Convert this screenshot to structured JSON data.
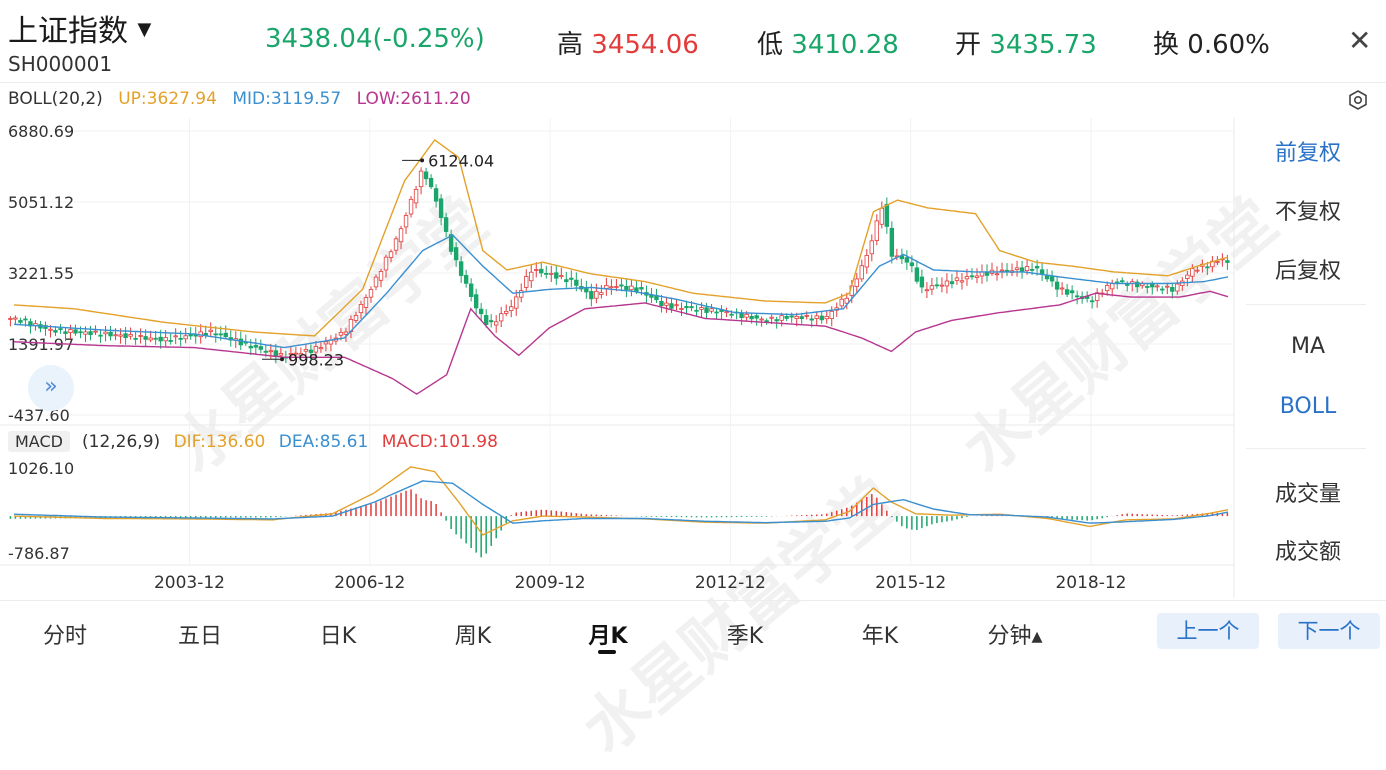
{
  "header": {
    "title": "上证指数",
    "code": "SH000001",
    "price": "3438.04(-0.25%)",
    "high_label": "高",
    "high_value": "3454.06",
    "low_label": "低",
    "low_value": "3410.28",
    "open_label": "开",
    "open_value": "3435.73",
    "turnover_label": "换",
    "turnover_value": "0.60%"
  },
  "colors": {
    "up": "#e23c3c",
    "down": "#1aa56a",
    "upper_band": "#e3a12a",
    "mid_band": "#3a8fd0",
    "lower_band": "#b7368f",
    "accent": "#2a72c8"
  },
  "boll": {
    "label": "BOLL(20,2)",
    "up": "UP:3627.94",
    "mid": "MID:3119.57",
    "low": "LOW:2611.20"
  },
  "macd": {
    "tag": "MACD",
    "params": "(12,26,9)",
    "dif": "DIF:136.60",
    "dea": "DEA:85.61",
    "macd": "MACD:101.98"
  },
  "right_panel": {
    "fq_front": "前复权",
    "fq_none": "不复权",
    "fq_back": "后复权",
    "ma": "MA",
    "boll": "BOLL",
    "volume": "成交量",
    "amount": "成交额"
  },
  "tabs": [
    "分时",
    "五日",
    "日K",
    "周K",
    "月K",
    "季K",
    "年K",
    "分钟▴"
  ],
  "nav": {
    "prev": "上一个",
    "next": "下一个"
  },
  "watermark": "水星财富学堂",
  "expand_icon": "double-chevron-right-icon",
  "chart_data": {
    "type": "candlestick",
    "interval": "monthly",
    "main_y_ticks": [
      "6880.69",
      "5051.12",
      "3221.55",
      "1391.97",
      "-437.60"
    ],
    "main_ylim": [
      -437.6,
      6880.69
    ],
    "macd_y_ticks": [
      "1026.10",
      "-786.87"
    ],
    "macd_ylim": [
      -786.87,
      1026.1
    ],
    "x_ticks": [
      "2003-12",
      "2006-12",
      "2009-12",
      "2012-12",
      "2015-12",
      "2018-12"
    ],
    "x_tick_t": [
      2003.92,
      2006.92,
      2009.92,
      2012.92,
      2015.92,
      2018.92
    ],
    "annotations": [
      {
        "label": "6124.04",
        "t": 2007.79,
        "value": 6124.04
      },
      {
        "label": "998.23",
        "t": 2005.46,
        "value": 998.23
      }
    ],
    "close_series_keypoints": [
      [
        2001.0,
        2050
      ],
      [
        2001.6,
        1750
      ],
      [
        2002.5,
        1650
      ],
      [
        2003.5,
        1500
      ],
      [
        2004.3,
        1700
      ],
      [
        2005.0,
        1300
      ],
      [
        2005.46,
        1080
      ],
      [
        2006.0,
        1250
      ],
      [
        2006.5,
        1700
      ],
      [
        2006.9,
        2700
      ],
      [
        2007.4,
        4200
      ],
      [
        2007.8,
        5900
      ],
      [
        2008.0,
        5200
      ],
      [
        2008.3,
        3700
      ],
      [
        2008.7,
        2300
      ],
      [
        2008.9,
        1850
      ],
      [
        2009.3,
        2400
      ],
      [
        2009.6,
        3300
      ],
      [
        2009.9,
        3200
      ],
      [
        2010.3,
        3000
      ],
      [
        2010.6,
        2600
      ],
      [
        2010.9,
        2900
      ],
      [
        2011.4,
        2800
      ],
      [
        2011.8,
        2400
      ],
      [
        2012.3,
        2300
      ],
      [
        2012.9,
        2200
      ],
      [
        2013.5,
        2000
      ],
      [
        2013.9,
        2100
      ],
      [
        2014.5,
        2050
      ],
      [
        2014.9,
        2700
      ],
      [
        2015.2,
        3700
      ],
      [
        2015.45,
        5000
      ],
      [
        2015.6,
        3700
      ],
      [
        2015.9,
        3500
      ],
      [
        2016.1,
        2800
      ],
      [
        2016.6,
        3000
      ],
      [
        2017.1,
        3200
      ],
      [
        2017.6,
        3300
      ],
      [
        2018.0,
        3350
      ],
      [
        2018.4,
        2800
      ],
      [
        2018.9,
        2500
      ],
      [
        2019.3,
        3000
      ],
      [
        2019.8,
        2900
      ],
      [
        2020.3,
        2800
      ],
      [
        2020.6,
        3300
      ],
      [
        2020.9,
        3450
      ],
      [
        2021.1,
        3600
      ],
      [
        2021.2,
        3450
      ]
    ],
    "boll_up_keypoints": [
      [
        2001.0,
        2400
      ],
      [
        2002.0,
        2300
      ],
      [
        2003.5,
        1950
      ],
      [
        2005.0,
        1700
      ],
      [
        2006.0,
        1600
      ],
      [
        2006.8,
        2800
      ],
      [
        2007.5,
        5600
      ],
      [
        2008.0,
        6650
      ],
      [
        2008.4,
        6200
      ],
      [
        2008.8,
        3800
      ],
      [
        2009.2,
        3300
      ],
      [
        2009.8,
        3500
      ],
      [
        2010.6,
        3200
      ],
      [
        2011.5,
        3000
      ],
      [
        2012.3,
        2700
      ],
      [
        2013.5,
        2500
      ],
      [
        2014.5,
        2450
      ],
      [
        2014.9,
        2700
      ],
      [
        2015.3,
        4800
      ],
      [
        2015.7,
        5100
      ],
      [
        2016.2,
        4900
      ],
      [
        2017.0,
        4750
      ],
      [
        2017.4,
        3800
      ],
      [
        2018.0,
        3500
      ],
      [
        2018.6,
        3400
      ],
      [
        2019.3,
        3250
      ],
      [
        2020.2,
        3150
      ],
      [
        2020.7,
        3400
      ],
      [
        2021.2,
        3630
      ]
    ],
    "boll_mid_keypoints": [
      [
        2001.0,
        1900
      ],
      [
        2002.5,
        1750
      ],
      [
        2004.0,
        1650
      ],
      [
        2005.5,
        1300
      ],
      [
        2006.5,
        1550
      ],
      [
        2007.2,
        2700
      ],
      [
        2007.8,
        3800
      ],
      [
        2008.3,
        4200
      ],
      [
        2008.8,
        3400
      ],
      [
        2009.3,
        2700
      ],
      [
        2009.9,
        2800
      ],
      [
        2010.6,
        2850
      ],
      [
        2011.3,
        2750
      ],
      [
        2012.0,
        2550
      ],
      [
        2013.0,
        2200
      ],
      [
        2014.0,
        2150
      ],
      [
        2014.8,
        2300
      ],
      [
        2015.4,
        3400
      ],
      [
        2015.8,
        3700
      ],
      [
        2016.3,
        3300
      ],
      [
        2017.0,
        3250
      ],
      [
        2017.8,
        3250
      ],
      [
        2018.5,
        3100
      ],
      [
        2019.3,
        2950
      ],
      [
        2020.2,
        2950
      ],
      [
        2020.8,
        3000
      ],
      [
        2021.2,
        3120
      ]
    ],
    "boll_low_keypoints": [
      [
        2001.0,
        1450
      ],
      [
        2002.5,
        1350
      ],
      [
        2004.0,
        1300
      ],
      [
        2005.5,
        1050
      ],
      [
        2006.5,
        1050
      ],
      [
        2007.3,
        500
      ],
      [
        2007.7,
        100
      ],
      [
        2008.2,
        600
      ],
      [
        2008.6,
        2300
      ],
      [
        2009.0,
        1600
      ],
      [
        2009.4,
        1100
      ],
      [
        2009.9,
        1800
      ],
      [
        2010.5,
        2300
      ],
      [
        2011.5,
        2450
      ],
      [
        2012.5,
        2050
      ],
      [
        2013.5,
        1950
      ],
      [
        2014.5,
        1850
      ],
      [
        2015.1,
        1550
      ],
      [
        2015.6,
        1200
      ],
      [
        2016.0,
        1700
      ],
      [
        2016.6,
        2000
      ],
      [
        2017.4,
        2200
      ],
      [
        2018.4,
        2400
      ],
      [
        2019.0,
        2700
      ],
      [
        2019.6,
        2600
      ],
      [
        2020.4,
        2600
      ],
      [
        2020.9,
        2750
      ],
      [
        2021.2,
        2610
      ]
    ],
    "dif_keypoints": [
      [
        2001.0,
        0
      ],
      [
        2002.5,
        -50
      ],
      [
        2004.0,
        -60
      ],
      [
        2005.3,
        -80
      ],
      [
        2006.3,
        50
      ],
      [
        2007.0,
        500
      ],
      [
        2007.6,
        1050
      ],
      [
        2008.0,
        950
      ],
      [
        2008.4,
        300
      ],
      [
        2008.8,
        -400
      ],
      [
        2009.3,
        -100
      ],
      [
        2009.8,
        0
      ],
      [
        2010.5,
        -20
      ],
      [
        2011.5,
        -60
      ],
      [
        2012.5,
        -130
      ],
      [
        2013.5,
        -150
      ],
      [
        2014.5,
        -80
      ],
      [
        2014.9,
        100
      ],
      [
        2015.3,
        600
      ],
      [
        2015.6,
        300
      ],
      [
        2016.0,
        50
      ],
      [
        2016.6,
        20
      ],
      [
        2017.4,
        40
      ],
      [
        2018.2,
        -50
      ],
      [
        2018.9,
        -220
      ],
      [
        2019.5,
        -80
      ],
      [
        2020.3,
        -60
      ],
      [
        2020.9,
        60
      ],
      [
        2021.2,
        137
      ]
    ],
    "dea_keypoints": [
      [
        2001.0,
        40
      ],
      [
        2002.5,
        -20
      ],
      [
        2004.0,
        -40
      ],
      [
        2005.3,
        -60
      ],
      [
        2006.3,
        0
      ],
      [
        2007.0,
        300
      ],
      [
        2007.8,
        750
      ],
      [
        2008.3,
        700
      ],
      [
        2008.8,
        250
      ],
      [
        2009.3,
        -150
      ],
      [
        2009.8,
        -100
      ],
      [
        2010.5,
        -50
      ],
      [
        2011.5,
        -50
      ],
      [
        2012.5,
        -110
      ],
      [
        2013.5,
        -140
      ],
      [
        2014.5,
        -110
      ],
      [
        2014.9,
        -40
      ],
      [
        2015.3,
        250
      ],
      [
        2015.8,
        350
      ],
      [
        2016.3,
        150
      ],
      [
        2016.9,
        30
      ],
      [
        2017.5,
        20
      ],
      [
        2018.2,
        -20
      ],
      [
        2018.9,
        -150
      ],
      [
        2019.5,
        -120
      ],
      [
        2020.3,
        -70
      ],
      [
        2020.9,
        10
      ],
      [
        2021.2,
        86
      ]
    ]
  }
}
